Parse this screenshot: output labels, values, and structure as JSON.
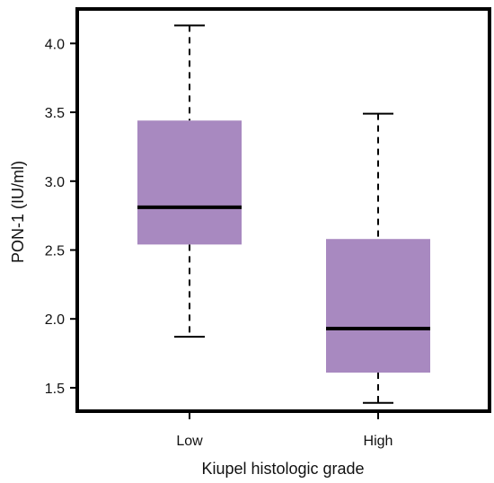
{
  "chart_data": {
    "type": "boxplot",
    "title": "",
    "xlabel": "Kiupel histologic grade",
    "ylabel": "PON-1 (IU/ml)",
    "categories": [
      "Low",
      "High"
    ],
    "ylim": [
      1.33,
      4.25
    ],
    "yticks": [
      1.5,
      2.0,
      2.5,
      3.0,
      3.5,
      4.0
    ],
    "ytick_labels": [
      "1.5",
      "2.0",
      "2.5",
      "3.0",
      "3.5",
      "4.0"
    ],
    "grid": false,
    "boxes": [
      {
        "category": "Low",
        "whisker_low": 1.87,
        "q1": 2.54,
        "median": 2.81,
        "q3": 3.44,
        "whisker_high": 4.13
      },
      {
        "category": "High",
        "whisker_low": 1.39,
        "q1": 1.61,
        "median": 1.93,
        "q3": 2.58,
        "whisker_high": 3.49
      }
    ],
    "colors": {
      "box_fill": "#a889c0",
      "median": "#000000",
      "whisker": "#000000",
      "frame": "#000000"
    }
  }
}
